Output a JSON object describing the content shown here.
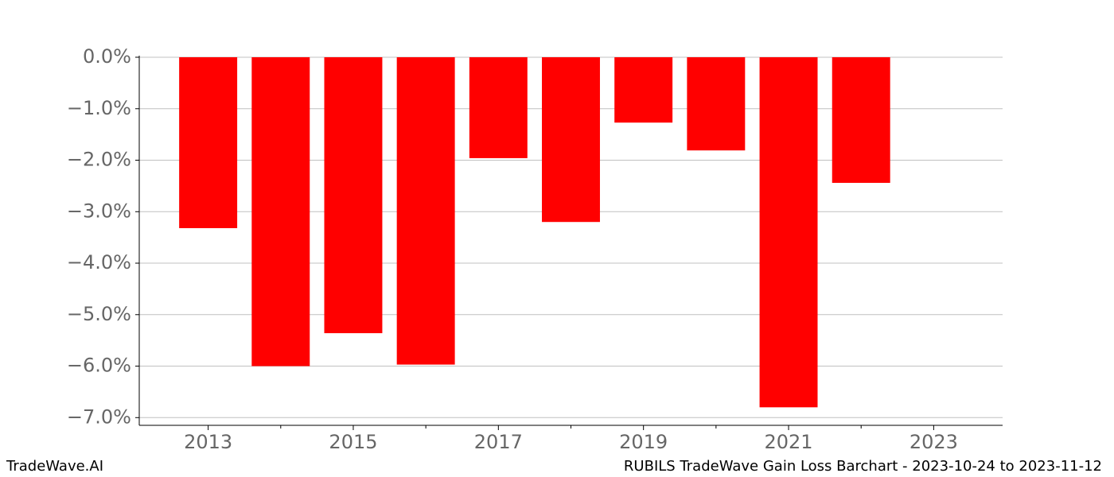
{
  "chart_data": {
    "type": "bar",
    "title": "RUBILS TradeWave Gain Loss Barchart - 2023-10-24 to 2023-11-12",
    "watermark": "TradeWave.AI",
    "x": [
      2013,
      2014,
      2015,
      2016,
      2017,
      2018,
      2019,
      2020,
      2021,
      2022
    ],
    "values": [
      -3.32,
      -6.0,
      -5.36,
      -5.97,
      -1.96,
      -3.2,
      -1.27,
      -1.81,
      -6.8,
      -2.44
    ],
    "color": "#ff0000",
    "xlim": [
      2012.05,
      2023.95
    ],
    "xticks": [
      2013,
      2015,
      2017,
      2019,
      2021,
      2023
    ],
    "xticks_minor": [
      2014,
      2016,
      2018,
      2020,
      2022
    ],
    "ylim": [
      -7.15,
      0
    ],
    "yticks": [
      {
        "value": 0,
        "label": "0.0%"
      },
      {
        "value": -1,
        "label": "−1.0%"
      },
      {
        "value": -2,
        "label": "−2.0%"
      },
      {
        "value": -3,
        "label": "−3.0%"
      },
      {
        "value": -4,
        "label": "−4.0%"
      },
      {
        "value": -5,
        "label": "−5.0%"
      },
      {
        "value": -6,
        "label": "−6.0%"
      },
      {
        "value": -7,
        "label": "−7.0%"
      }
    ],
    "grid": true
  }
}
